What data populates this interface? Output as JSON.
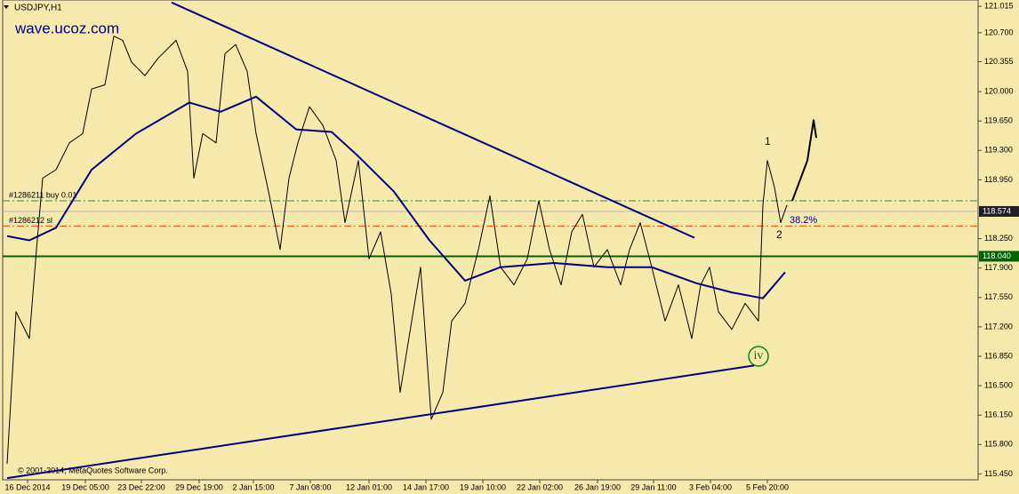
{
  "chart_data": {
    "type": "line",
    "title": "USDJPY,H1",
    "subtitle": "wave.ucoz.com",
    "footer": "© 2001-2014, MetaQuotes Software Corp.",
    "xlim": [
      0,
      548.5
    ],
    "ylim": [
      115.38,
      121.09
    ],
    "xticks": [
      {
        "value": 14,
        "label": "16 Dec 2014"
      },
      {
        "value": 46.5,
        "label": "19 Dec 05:00"
      },
      {
        "value": 78,
        "label": "23 Dec 22:00"
      },
      {
        "value": 110.5,
        "label": "29 Dec 19:00"
      },
      {
        "value": 141,
        "label": "2 Jan 15:00"
      },
      {
        "value": 173,
        "label": "7 Jan 08:00"
      },
      {
        "value": 206,
        "label": "12 Jan 01:00"
      },
      {
        "value": 238,
        "label": "14 Jan 17:00"
      },
      {
        "value": 270,
        "label": "19 Jan 10:00"
      },
      {
        "value": 302,
        "label": "22 Jan 02:00"
      },
      {
        "value": 334.5,
        "label": "26 Jan 19:00"
      },
      {
        "value": 366,
        "label": "29 Jan 11:00"
      },
      {
        "value": 398,
        "label": "3 Feb 04:00"
      },
      {
        "value": 430,
        "label": "5 Feb 20:00"
      }
    ],
    "yticks": [
      121.015,
      {
        "value": 120.7,
        "label": "120.700"
      },
      120.355,
      {
        "value": 120.0,
        "label": "120.000"
      },
      {
        "value": 119.65,
        "label": "119.650"
      },
      {
        "value": 119.3,
        "label": "119.300"
      },
      {
        "value": 118.95,
        "label": "118.950"
      },
      {
        "value": 118.25,
        "label": "118.250"
      },
      {
        "value": 117.9,
        "label": "117.900"
      },
      {
        "value": 117.55,
        "label": "117.550"
      },
      {
        "value": 117.2,
        "label": "117.200"
      },
      {
        "value": 116.85,
        "label": "116.850"
      },
      {
        "value": 116.5,
        "label": "116.500"
      },
      {
        "value": 116.15,
        "label": "116.150"
      },
      {
        "value": 115.8,
        "label": "115.800"
      },
      {
        "value": 115.45,
        "label": "115.450"
      }
    ],
    "series": [
      {
        "color": "#000000",
        "x": [
          2.5,
          7.5,
          15,
          19,
          22.5,
          30,
          37.5,
          45,
          50,
          57.5,
          62.5,
          67.5,
          72.5,
          80,
          87.5,
          97.5,
          104,
          107.5,
          112.5,
          120,
          125,
          131,
          137.5,
          142.5,
          150,
          156,
          161,
          166,
          172.5,
          180,
          187.5,
          192.5,
          200,
          206,
          212.5,
          218.5,
          223.5,
          230,
          235,
          241,
          247.5,
          252.5,
          260,
          267.5,
          274,
          280,
          287.5,
          295,
          301.5,
          307.5,
          314,
          320,
          326,
          332.5,
          340,
          347.5,
          352.5,
          358.5,
          365,
          372.5,
          380,
          387.5,
          392.5,
          397.5,
          402.5,
          410,
          417.5,
          425,
          427.5,
          430,
          434,
          437.5,
          441
        ],
        "values": [
          115.57,
          117.38,
          117.06,
          118.12,
          118.97,
          119.07,
          119.39,
          119.5,
          120.03,
          120.08,
          120.66,
          120.61,
          120.35,
          120.19,
          120.4,
          120.61,
          120.24,
          118.97,
          119.5,
          119.39,
          120.45,
          120.56,
          120.24,
          119.5,
          118.76,
          118.12,
          118.97,
          119.39,
          119.82,
          119.6,
          119.18,
          118.44,
          119.18,
          118.01,
          118.33,
          117.59,
          116.42,
          117.27,
          117.91,
          116.1,
          116.42,
          117.27,
          117.48,
          118.12,
          118.76,
          117.91,
          117.7,
          118.01,
          118.7,
          118.12,
          117.7,
          118.33,
          118.54,
          117.91,
          118.12,
          117.7,
          118.12,
          118.44,
          117.91,
          117.27,
          117.7,
          117.06,
          117.7,
          117.91,
          117.38,
          117.17,
          117.48,
          117.27,
          118.65,
          119.18,
          118.86,
          118.44,
          118.65
        ]
      },
      {
        "color": "#000080",
        "x": [
          2.5,
          15,
          30,
          50,
          75,
          105,
          122.5,
          142.5,
          165,
          185,
          200,
          220,
          240,
          260,
          280,
          310,
          340,
          365,
          390,
          410,
          427.5,
          440
        ],
        "values": [
          118.28,
          118.23,
          118.38,
          119.07,
          119.5,
          119.87,
          119.76,
          119.94,
          119.55,
          119.52,
          119.23,
          118.81,
          118.23,
          117.75,
          117.91,
          117.96,
          117.91,
          117.91,
          117.72,
          117.61,
          117.54,
          117.85
        ]
      },
      {
        "color": "#000080",
        "x": [
          95,
          389
        ],
        "values": [
          121.06,
          118.26
        ]
      },
      {
        "color": "#000080",
        "x": [
          2.5,
          422.5
        ],
        "values": [
          115.4,
          116.74
        ]
      },
      {
        "color": "#000000",
        "x": [
          444,
          452.5,
          456,
          457.5
        ],
        "values": [
          118.7,
          119.18,
          119.66,
          119.45
        ]
      }
    ],
    "levels": [
      {
        "value": 118.04,
        "label": "118.040",
        "color": "#006400"
      },
      {
        "value": 118.574,
        "label": "118.574",
        "color": "#b8b8b8"
      },
      {
        "value": 118.7,
        "text": "#1286211 buy 0.01",
        "color": "#2e8b57"
      },
      {
        "value": 118.4,
        "text": "#1286212 sl",
        "color": "#ff4500"
      }
    ],
    "annotations": [
      "38.2%",
      "iv",
      "1",
      "2"
    ]
  }
}
